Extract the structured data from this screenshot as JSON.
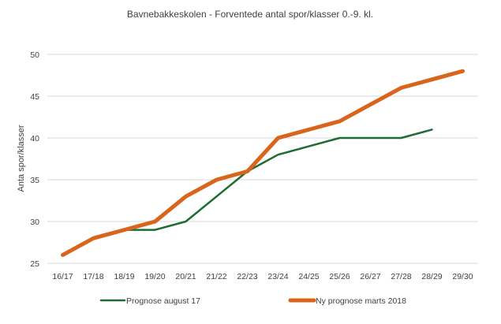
{
  "chart_data": {
    "type": "line",
    "title": "Bavnebakkeskolen -  Forventede  antal spor/klasser 0.-9. kl.",
    "ylabel": "Anta spor/klasser",
    "xlabel": "",
    "categories": [
      "16/17",
      "17/18",
      "18/19",
      "19/20",
      "20/21",
      "21/22",
      "22/23",
      "23/24",
      "24/25",
      "25/26",
      "26/27",
      "27/28",
      "28/29",
      "29/30"
    ],
    "ylim": [
      25,
      50
    ],
    "yticks": [
      25,
      30,
      35,
      40,
      45,
      50
    ],
    "grid": true,
    "legend": "bottom",
    "series": [
      {
        "name": "Prognose august 17",
        "color": "#1e6b33",
        "values": [
          26,
          28,
          29,
          29,
          30,
          33,
          36,
          38,
          39,
          40,
          40,
          40,
          41,
          null
        ]
      },
      {
        "name": "Ny prognose marts 2018",
        "color": "#d9651c",
        "values": [
          26,
          28,
          29,
          30,
          33,
          35,
          36,
          40,
          41,
          42,
          44,
          46,
          47,
          48
        ]
      }
    ]
  }
}
